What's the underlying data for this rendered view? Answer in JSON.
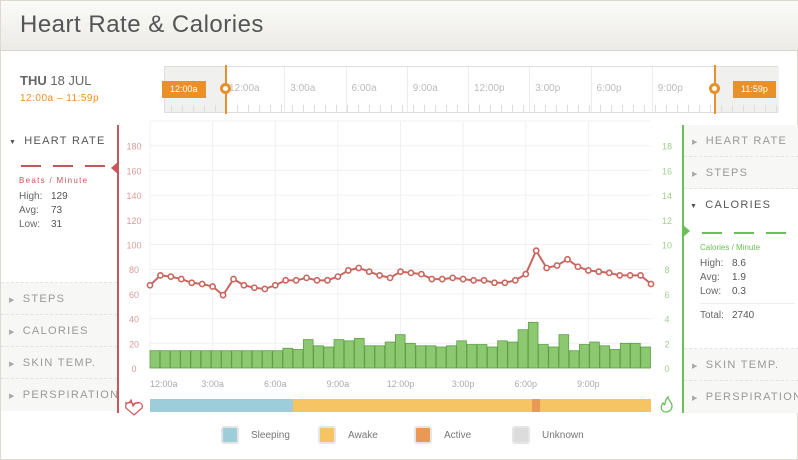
{
  "title": "Heart Rate & Calories",
  "date": {
    "weekday": "THU",
    "date": "18 JUL",
    "range": "12:00a – 11:59p"
  },
  "timeline": {
    "labels": [
      "12:00a",
      "3:00a",
      "6:00a",
      "9:00a",
      "12:00p",
      "3:00p",
      "6:00p",
      "9:00p"
    ],
    "start_flag": "12:00a",
    "end_flag": "11:59p"
  },
  "left_panel": {
    "heart_rate": {
      "label": "HEART RATE",
      "unit": "Beats / Minute",
      "high_label": "High:",
      "high": "129",
      "avg_label": "Avg:",
      "avg": "73",
      "low_label": "Low:",
      "low": "31"
    },
    "collapsed": [
      "STEPS",
      "CALORIES",
      "SKIN TEMP.",
      "PERSPIRATION"
    ]
  },
  "right_panel": {
    "top": [
      "HEART RATE",
      "STEPS"
    ],
    "calories": {
      "label": "CALORIES",
      "unit": "Calories / Minute",
      "high_label": "High:",
      "high": "8.6",
      "avg_label": "Avg:",
      "avg": "1.9",
      "low_label": "Low:",
      "low": "0.3",
      "total_label": "Total:",
      "total": "2740"
    },
    "bottom": [
      "SKIN TEMP.",
      "PERSPIRATION"
    ]
  },
  "legend": [
    {
      "label": "Sleeping",
      "color": "#9ccdd8"
    },
    {
      "label": "Awake",
      "color": "#f6c462"
    },
    {
      "label": "Active",
      "color": "#e89a55"
    },
    {
      "label": "Unknown",
      "color": "#dcdcdc"
    }
  ],
  "colors": {
    "heart": "#c9565a",
    "calories": "#8cc870",
    "accent": "#e8902a"
  },
  "chart_data": {
    "type": "line+bar",
    "x_labels": [
      "12:00a",
      "3:00a",
      "6:00a",
      "9:00a",
      "12:00p",
      "3:00p",
      "6:00p",
      "9:00p"
    ],
    "left_axis": {
      "label": "Beats / Minute",
      "ticks": [
        0,
        20,
        40,
        60,
        80,
        100,
        120,
        140,
        160,
        180
      ],
      "range": [
        0,
        200
      ]
    },
    "right_axis": {
      "label": "Calories / Minute",
      "ticks": [
        0,
        2,
        4,
        6,
        8,
        10,
        12,
        14,
        16,
        18
      ],
      "range": [
        0,
        20
      ]
    },
    "heart_rate": [
      67,
      75,
      74,
      72,
      69,
      68,
      66,
      59,
      72,
      67,
      65,
      64,
      67,
      71,
      71,
      73,
      71,
      71,
      74,
      79,
      81,
      78,
      75,
      73,
      78,
      77,
      76,
      72,
      72,
      73,
      72,
      71,
      71,
      69,
      69,
      71,
      76,
      95,
      81,
      83,
      88,
      82,
      79,
      78,
      77,
      75,
      75,
      75,
      68
    ],
    "calories": [
      1.4,
      1.4,
      1.4,
      1.4,
      1.4,
      1.4,
      1.4,
      1.4,
      1.4,
      1.4,
      1.4,
      1.4,
      1.4,
      1.6,
      1.5,
      2.3,
      1.8,
      1.7,
      2.3,
      2.2,
      2.4,
      1.8,
      1.8,
      2.1,
      2.7,
      2.0,
      1.8,
      1.8,
      1.7,
      1.8,
      2.2,
      1.9,
      1.9,
      1.7,
      2.2,
      2.1,
      3.1,
      3.7,
      1.9,
      1.7,
      2.7,
      1.4,
      1.9,
      2.1,
      1.8,
      1.5,
      2.0,
      2.0,
      1.7
    ],
    "activity_bands": [
      {
        "state": "Sleeping",
        "start_h": 0,
        "end_h": 6.85
      },
      {
        "state": "Awake",
        "start_h": 6.85,
        "end_h": 18.3
      },
      {
        "state": "Active",
        "start_h": 18.3,
        "end_h": 18.7
      },
      {
        "state": "Awake",
        "start_h": 18.7,
        "end_h": 24
      }
    ]
  }
}
